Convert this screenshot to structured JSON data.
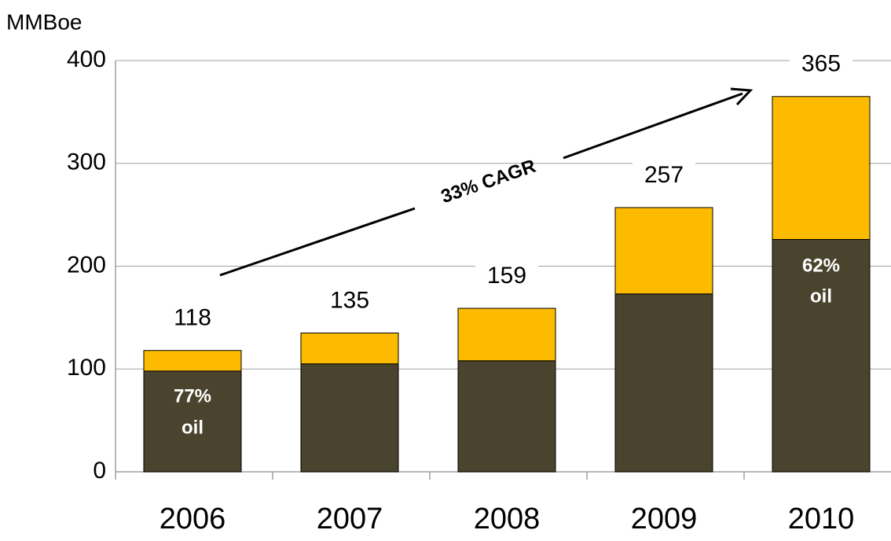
{
  "chart_data": {
    "type": "stacked_bar",
    "y_label": "MMBoe",
    "categories": [
      "2006",
      "2007",
      "2008",
      "2009",
      "2010"
    ],
    "series": [
      {
        "color": "#4a432d",
        "values": [
          98,
          105,
          108,
          173,
          226
        ]
      },
      {
        "color": "#fdbb00",
        "values": [
          20,
          30,
          51,
          84,
          139
        ]
      }
    ],
    "totals": [
      118,
      135,
      159,
      257,
      365
    ],
    "annotations": [
      "77%",
      "oil",
      "62%",
      "oil",
      "33% CAGR"
    ],
    "ylim": [
      0,
      400
    ],
    "yticks": [
      0,
      100,
      200,
      300,
      400
    ],
    "grid": true
  }
}
